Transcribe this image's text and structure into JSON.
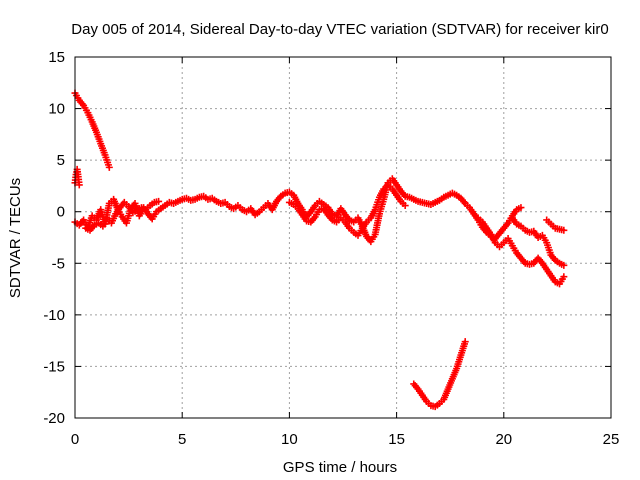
{
  "chart_data": {
    "type": "scatter",
    "title": "Day 005 of 2014, Sidereal Day-to-day VTEC variation (SDTVAR) for receiver kir0",
    "xlabel": "GPS time / hours",
    "ylabel": "SDTVAR / TECUs",
    "xlim": [
      0,
      25
    ],
    "ylim": [
      -20,
      15
    ],
    "x_ticks": [
      0,
      5,
      10,
      15,
      20,
      25
    ],
    "y_ticks": [
      -20,
      -15,
      -10,
      -5,
      0,
      5,
      10,
      15
    ],
    "grid": true,
    "marker": "plus",
    "series_color": "#ff0000",
    "segments": [
      {
        "name": "early-drop",
        "points": [
          [
            0.0,
            11.5
          ],
          [
            0.2,
            10.8
          ],
          [
            0.4,
            10.3
          ],
          [
            0.6,
            9.6
          ],
          [
            0.8,
            8.7
          ],
          [
            1.0,
            7.7
          ],
          [
            1.2,
            6.6
          ],
          [
            1.4,
            5.5
          ],
          [
            1.6,
            4.3
          ]
        ]
      },
      {
        "name": "start-spike",
        "points": [
          [
            0.0,
            2.8
          ],
          [
            0.05,
            3.6
          ],
          [
            0.1,
            4.1
          ],
          [
            0.15,
            3.4
          ],
          [
            0.2,
            2.6
          ]
        ]
      },
      {
        "name": "main-band",
        "points": [
          [
            0.0,
            -1.0
          ],
          [
            0.2,
            -1.3
          ],
          [
            0.4,
            -0.8
          ],
          [
            0.6,
            -1.5
          ],
          [
            0.8,
            -0.4
          ],
          [
            1.0,
            -0.8
          ],
          [
            1.2,
            0.2
          ],
          [
            1.4,
            -1.2
          ],
          [
            1.6,
            0.8
          ],
          [
            1.8,
            1.2
          ],
          [
            2.0,
            0.2
          ],
          [
            2.2,
            -0.5
          ],
          [
            2.4,
            -1.1
          ],
          [
            2.6,
            0.3
          ],
          [
            2.8,
            0.8
          ],
          [
            3.0,
            -0.4
          ],
          [
            3.2,
            0.4
          ],
          [
            3.4,
            -0.2
          ],
          [
            3.6,
            -0.7
          ],
          [
            3.8,
            0.0
          ],
          [
            4.0,
            0.3
          ],
          [
            4.2,
            0.6
          ],
          [
            4.4,
            0.9
          ],
          [
            4.6,
            0.8
          ],
          [
            4.8,
            1.0
          ],
          [
            5.0,
            1.2
          ],
          [
            5.2,
            1.3
          ],
          [
            5.4,
            1.1
          ],
          [
            5.6,
            1.2
          ],
          [
            5.8,
            1.4
          ],
          [
            6.0,
            1.5
          ],
          [
            6.2,
            1.2
          ],
          [
            6.4,
            1.3
          ],
          [
            6.6,
            1.0
          ],
          [
            6.8,
            0.8
          ],
          [
            7.0,
            0.9
          ],
          [
            7.2,
            0.5
          ],
          [
            7.4,
            0.3
          ],
          [
            7.6,
            0.6
          ],
          [
            7.8,
            0.2
          ],
          [
            8.0,
            0.0
          ],
          [
            8.2,
            0.3
          ],
          [
            8.4,
            -0.3
          ],
          [
            8.6,
            0.0
          ],
          [
            8.8,
            0.4
          ],
          [
            9.0,
            0.8
          ],
          [
            9.2,
            0.2
          ],
          [
            9.4,
            1.0
          ],
          [
            9.6,
            1.5
          ],
          [
            9.8,
            1.8
          ],
          [
            10.0,
            1.9
          ],
          [
            10.2,
            1.6
          ],
          [
            10.4,
            0.8
          ],
          [
            10.6,
            0.2
          ],
          [
            10.8,
            -0.5
          ],
          [
            11.0,
            0.0
          ],
          [
            11.2,
            0.6
          ],
          [
            11.4,
            1.0
          ],
          [
            11.6,
            0.7
          ],
          [
            11.8,
            0.4
          ],
          [
            12.0,
            -0.2
          ],
          [
            12.2,
            -0.5
          ],
          [
            12.4,
            0.3
          ],
          [
            12.6,
            -0.3
          ],
          [
            12.8,
            -0.8
          ],
          [
            13.0,
            -1.0
          ],
          [
            13.2,
            -0.6
          ],
          [
            13.4,
            -1.4
          ],
          [
            13.6,
            -2.4
          ],
          [
            13.8,
            -2.9
          ],
          [
            14.0,
            -2.2
          ],
          [
            14.2,
            -0.2
          ],
          [
            14.4,
            1.2
          ],
          [
            14.6,
            2.8
          ],
          [
            14.8,
            3.2
          ],
          [
            15.0,
            2.6
          ],
          [
            15.2,
            2.0
          ],
          [
            15.4,
            1.5
          ],
          [
            15.6,
            1.4
          ],
          [
            15.8,
            1.2
          ],
          [
            16.0,
            1.0
          ],
          [
            16.2,
            0.9
          ],
          [
            16.4,
            0.8
          ],
          [
            16.6,
            0.7
          ],
          [
            16.8,
            0.9
          ],
          [
            17.0,
            1.1
          ],
          [
            17.2,
            1.4
          ],
          [
            17.4,
            1.6
          ],
          [
            17.6,
            1.8
          ],
          [
            17.8,
            1.6
          ],
          [
            18.0,
            1.3
          ],
          [
            18.2,
            0.8
          ],
          [
            18.4,
            0.4
          ],
          [
            18.6,
            -0.2
          ],
          [
            18.8,
            -0.8
          ],
          [
            19.0,
            -1.5
          ],
          [
            19.2,
            -2.0
          ],
          [
            19.4,
            -2.4
          ],
          [
            19.6,
            -2.6
          ],
          [
            19.8,
            -2.1
          ],
          [
            20.0,
            -1.6
          ],
          [
            20.2,
            -1.1
          ],
          [
            20.4,
            -0.4
          ],
          [
            20.6,
            0.2
          ],
          [
            20.8,
            0.4
          ]
        ]
      },
      {
        "name": "lower-loop",
        "points": [
          [
            0.5,
            -1.6
          ],
          [
            0.7,
            -1.8
          ],
          [
            0.9,
            -1.3
          ],
          [
            1.1,
            -1.1
          ],
          [
            1.3,
            -1.4
          ],
          [
            1.5,
            -0.7
          ],
          [
            1.7,
            -1.1
          ],
          [
            1.9,
            -0.2
          ],
          [
            2.1,
            0.4
          ],
          [
            2.3,
            0.9
          ],
          [
            2.5,
            0.5
          ],
          [
            2.7,
            -0.1
          ],
          [
            2.9,
            0.2
          ],
          [
            3.1,
            0.4
          ],
          [
            3.3,
            0.2
          ],
          [
            3.5,
            0.6
          ],
          [
            3.7,
            0.9
          ],
          [
            3.9,
            1.0
          ]
        ]
      },
      {
        "name": "mid-loop",
        "points": [
          [
            10.0,
            0.9
          ],
          [
            10.2,
            0.7
          ],
          [
            10.4,
            0.3
          ],
          [
            10.6,
            -0.3
          ],
          [
            10.8,
            -0.9
          ],
          [
            11.0,
            -1.0
          ],
          [
            11.2,
            -0.5
          ],
          [
            11.4,
            0.2
          ],
          [
            11.6,
            0.3
          ],
          [
            11.8,
            -0.3
          ],
          [
            12.0,
            -0.8
          ],
          [
            12.2,
            -1.0
          ],
          [
            12.4,
            -0.6
          ],
          [
            12.6,
            -1.0
          ],
          [
            12.8,
            -1.6
          ],
          [
            13.0,
            -2.0
          ],
          [
            13.2,
            -2.3
          ],
          [
            13.4,
            -1.6
          ],
          [
            13.6,
            -1.0
          ],
          [
            13.8,
            -0.6
          ],
          [
            14.0,
            0.2
          ],
          [
            14.2,
            1.4
          ],
          [
            14.4,
            2.2
          ],
          [
            14.6,
            2.6
          ],
          [
            14.8,
            2.2
          ],
          [
            15.0,
            1.6
          ],
          [
            15.2,
            1.0
          ],
          [
            15.4,
            0.6
          ]
        ]
      },
      {
        "name": "late-branch",
        "points": [
          [
            18.8,
            -0.6
          ],
          [
            19.0,
            -1.0
          ],
          [
            19.2,
            -1.6
          ],
          [
            19.4,
            -2.2
          ],
          [
            19.6,
            -3.0
          ],
          [
            19.8,
            -3.4
          ],
          [
            20.0,
            -3.0
          ],
          [
            20.2,
            -2.6
          ],
          [
            20.4,
            -3.3
          ],
          [
            20.6,
            -4.0
          ],
          [
            20.8,
            -4.5
          ],
          [
            21.0,
            -5.0
          ],
          [
            21.2,
            -5.1
          ],
          [
            21.4,
            -5.0
          ],
          [
            21.6,
            -4.5
          ],
          [
            21.8,
            -5.0
          ],
          [
            22.0,
            -5.6
          ],
          [
            22.2,
            -6.2
          ],
          [
            22.4,
            -6.8
          ],
          [
            22.6,
            -7.0
          ],
          [
            22.8,
            -6.3
          ]
        ]
      },
      {
        "name": "late-right",
        "points": [
          [
            20.4,
            -0.6
          ],
          [
            20.6,
            -1.2
          ],
          [
            20.8,
            -1.4
          ],
          [
            21.0,
            -1.8
          ],
          [
            21.2,
            -2.0
          ],
          [
            21.4,
            -1.9
          ],
          [
            21.6,
            -2.5
          ],
          [
            21.8,
            -2.3
          ],
          [
            22.0,
            -3.0
          ],
          [
            22.2,
            -4.2
          ],
          [
            22.4,
            -4.7
          ],
          [
            22.6,
            -5.0
          ],
          [
            22.8,
            -5.2
          ]
        ]
      },
      {
        "name": "upper-stub",
        "points": [
          [
            22.0,
            -0.8
          ],
          [
            22.2,
            -1.2
          ],
          [
            22.4,
            -1.6
          ],
          [
            22.6,
            -1.7
          ],
          [
            22.8,
            -1.8
          ]
        ]
      },
      {
        "name": "deep-dip",
        "points": [
          [
            15.8,
            -16.7
          ],
          [
            16.0,
            -17.2
          ],
          [
            16.2,
            -17.8
          ],
          [
            16.4,
            -18.4
          ],
          [
            16.6,
            -18.8
          ],
          [
            16.8,
            -18.9
          ],
          [
            17.0,
            -18.6
          ],
          [
            17.2,
            -18.2
          ],
          [
            17.4,
            -17.2
          ],
          [
            17.6,
            -16.2
          ],
          [
            17.8,
            -15.2
          ],
          [
            18.0,
            -13.9
          ],
          [
            18.2,
            -12.6
          ]
        ]
      }
    ]
  }
}
